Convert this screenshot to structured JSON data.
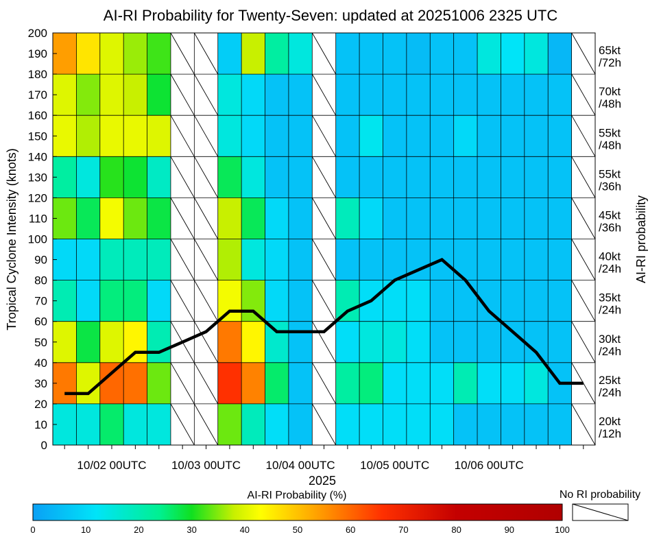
{
  "chart_data": {
    "type": "heatmap",
    "title": "AI-RI Probability for Twenty-Seven: updated at 20251006 2325 UTC",
    "ylabel": "Tropical Cyclone Intensity (knots)",
    "ylabel_right": "AI-RI probability",
    "xlabel": "2025",
    "ylim": [
      0,
      200
    ],
    "y_ticks": [
      0,
      10,
      20,
      30,
      40,
      50,
      60,
      70,
      80,
      90,
      100,
      110,
      120,
      130,
      140,
      150,
      160,
      170,
      180,
      190,
      200
    ],
    "x_tick_labels": [
      "10/02 00UTC",
      "10/03 00UTC",
      "10/04 00UTC",
      "10/05 00UTC",
      "10/06 00UTC"
    ],
    "x_tick_label_columns": [
      2,
      6,
      10,
      14,
      18
    ],
    "num_columns": 23,
    "row_bounds": [
      [
        0,
        20
      ],
      [
        20,
        40
      ],
      [
        40,
        60
      ],
      [
        60,
        80
      ],
      [
        80,
        100
      ],
      [
        100,
        120
      ],
      [
        120,
        140
      ],
      [
        140,
        160
      ],
      [
        160,
        180
      ],
      [
        180,
        200
      ]
    ],
    "right_labels": [
      [
        "20kt",
        "/12h"
      ],
      [
        "25kt",
        "/24h"
      ],
      [
        "30kt",
        "/24h"
      ],
      [
        "35kt",
        "/24h"
      ],
      [
        "40kt",
        "/24h"
      ],
      [
        "45kt",
        "/36h"
      ],
      [
        "55kt",
        "/36h"
      ],
      [
        "55kt",
        "/48h"
      ],
      [
        "70kt",
        "/48h"
      ],
      [
        "65kt",
        "/72h"
      ]
    ],
    "probability_rows_note": "rows bottom to top; null = no RI probability",
    "probability_rows": [
      [
        15,
        15,
        26,
        15,
        15,
        null,
        null,
        34,
        19,
        11,
        6,
        null,
        11,
        11,
        11,
        11,
        11,
        6,
        6,
        6,
        6,
        6,
        null
      ],
      [
        58,
        40,
        60,
        59,
        34,
        null,
        null,
        66,
        57,
        26,
        6,
        null,
        22,
        25,
        11,
        11,
        11,
        20,
        11,
        11,
        15,
        6,
        null
      ],
      [
        40,
        28,
        40,
        44,
        20,
        null,
        null,
        58,
        44,
        17,
        6,
        null,
        11,
        15,
        15,
        11,
        6,
        6,
        6,
        6,
        6,
        6,
        null
      ],
      [
        20,
        10,
        25,
        25,
        10,
        null,
        null,
        42,
        35,
        10,
        6,
        null,
        20,
        11,
        11,
        11,
        6,
        6,
        6,
        6,
        6,
        6,
        null
      ],
      [
        10,
        10,
        19,
        19,
        19,
        null,
        null,
        37,
        15,
        10,
        6,
        null,
        6,
        6,
        6,
        6,
        6,
        6,
        6,
        6,
        6,
        6,
        null
      ],
      [
        34,
        27,
        42,
        34,
        28,
        null,
        null,
        38,
        27,
        10,
        6,
        null,
        19,
        10,
        6,
        6,
        6,
        6,
        6,
        6,
        6,
        6,
        null
      ],
      [
        22,
        15,
        31,
        29,
        18,
        null,
        null,
        27,
        15,
        6,
        6,
        null,
        6,
        6,
        6,
        6,
        6,
        6,
        6,
        6,
        6,
        6,
        null
      ],
      [
        41,
        37,
        41,
        41,
        40,
        null,
        null,
        15,
        10,
        6,
        6,
        null,
        6,
        13,
        6,
        6,
        6,
        10,
        6,
        6,
        6,
        6,
        null
      ],
      [
        40,
        35,
        40,
        38,
        29,
        null,
        null,
        15,
        10,
        6,
        6,
        null,
        6,
        6,
        6,
        6,
        6,
        6,
        6,
        6,
        6,
        6,
        null
      ],
      [
        54,
        46,
        40,
        36,
        32,
        null,
        null,
        8,
        38,
        22,
        15,
        null,
        6,
        6,
        6,
        5,
        6,
        6,
        15,
        12,
        15,
        4,
        null
      ]
    ],
    "series": [
      {
        "name": "Intensity",
        "x": [
          0.5,
          1.5,
          2.5,
          3.5,
          4.5,
          5.5,
          6.5,
          7.5,
          8.5,
          9.5,
          10.5,
          11.5,
          12.5,
          13.5,
          14.5,
          15.5,
          16.5,
          17.5,
          18.5,
          19.5,
          20.5,
          21.5,
          22.5
        ],
        "y": [
          25,
          25,
          35,
          45,
          45,
          50,
          55,
          65,
          65,
          55,
          55,
          55,
          65,
          70,
          80,
          85,
          90,
          80,
          65,
          55,
          45,
          30,
          30
        ]
      }
    ],
    "colorbar": {
      "label": "AI-RI Probability (%)",
      "ticks": [
        0,
        10,
        20,
        30,
        40,
        50,
        60,
        70,
        80,
        90,
        100
      ],
      "no_ri_label": "No RI probability"
    }
  }
}
